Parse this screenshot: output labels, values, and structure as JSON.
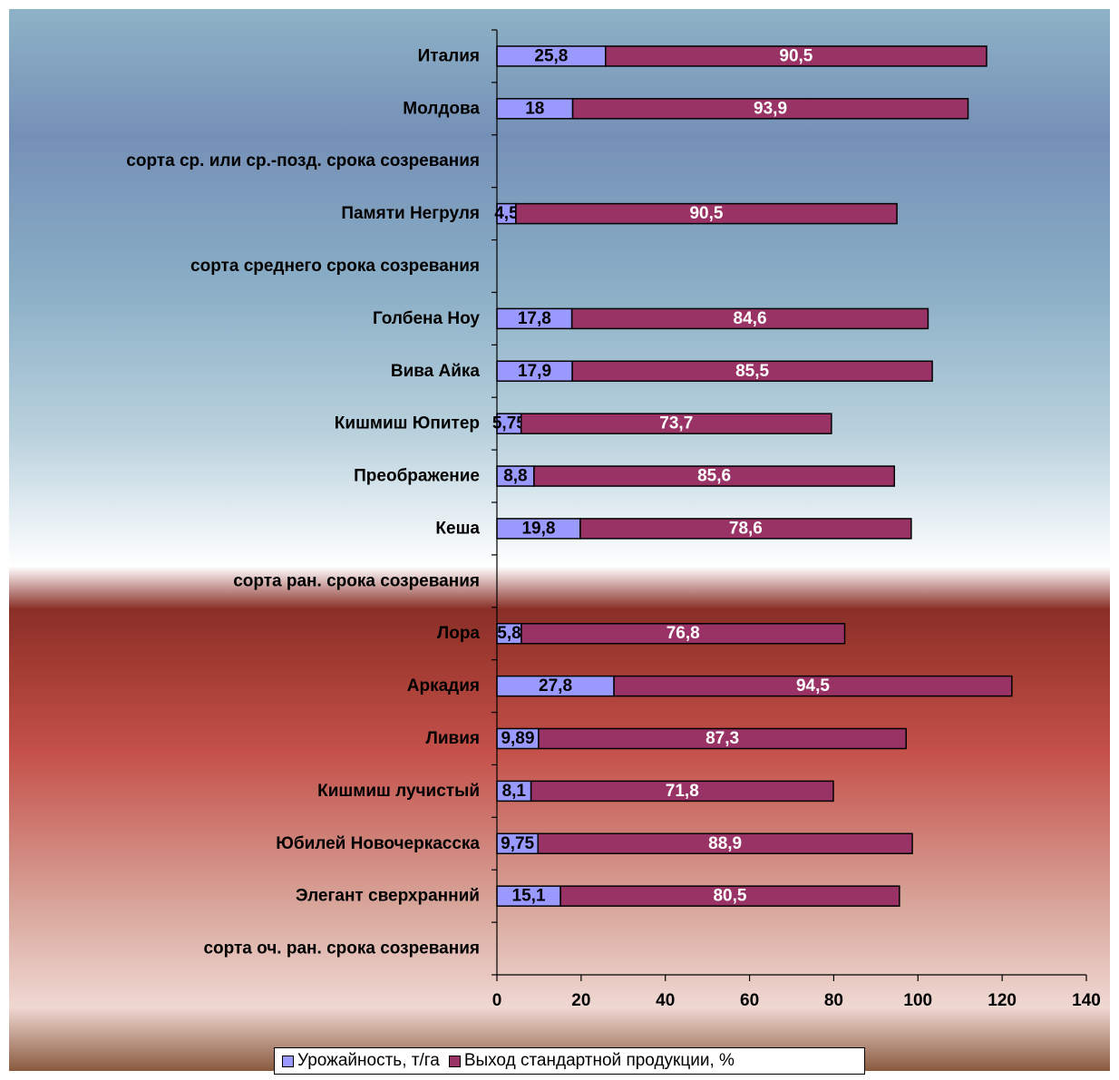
{
  "chart_data": {
    "type": "bar",
    "orientation": "horizontal",
    "stacked": true,
    "categories": [
      "сорта оч. ран. срока созревания",
      "Элегант сверхранний",
      "Юбилей Новочеркасска",
      "Кишмиш лучистый",
      "Ливия",
      "Аркадия",
      "Лора",
      "сорта ран. срока созревания",
      "Кеша",
      "Преображение",
      "Кишмиш Юпитер",
      "Вива Айка",
      "Голбена Ноу",
      "сорта среднего срока созревания",
      "Памяти Негруля",
      "сорта ср. или ср.-позд. срока созревания",
      "Молдова",
      "Италия"
    ],
    "series": [
      {
        "name": "Урожайность, т/га",
        "color": "#9999ff",
        "values": [
          null,
          15.1,
          9.75,
          8.1,
          9.89,
          27.8,
          5.8,
          null,
          19.8,
          8.8,
          5.75,
          17.9,
          17.8,
          null,
          4.5,
          null,
          18,
          25.8
        ],
        "labels": [
          "",
          "15,1",
          "9,75",
          "8,1",
          "9,89",
          "27,8",
          "5,8",
          "",
          "19,8",
          "8,8",
          "5,75",
          "17,9",
          "17,8",
          "",
          "4,5",
          "",
          "18",
          "25,8"
        ]
      },
      {
        "name": "Выход стандартной продукции, %",
        "color": "#993366",
        "values": [
          null,
          80.5,
          88.9,
          71.8,
          87.3,
          94.5,
          76.8,
          null,
          78.6,
          85.6,
          73.7,
          85.5,
          84.6,
          null,
          90.5,
          null,
          93.9,
          90.5
        ],
        "labels": [
          "",
          "80,5",
          "88,9",
          "71,8",
          "87,3",
          "94,5",
          "76,8",
          "",
          "78,6",
          "85,6",
          "73,7",
          "85,5",
          "84,6",
          "",
          "90,5",
          "",
          "93,9",
          "90,5"
        ]
      }
    ],
    "xlim": [
      0,
      140
    ],
    "xticks": [
      "0",
      "20",
      "40",
      "60",
      "80",
      "100",
      "120",
      "140"
    ],
    "tick_values": [
      0,
      20,
      40,
      60,
      80,
      100,
      120,
      140
    ],
    "grid": false,
    "legend_position": "bottom"
  }
}
